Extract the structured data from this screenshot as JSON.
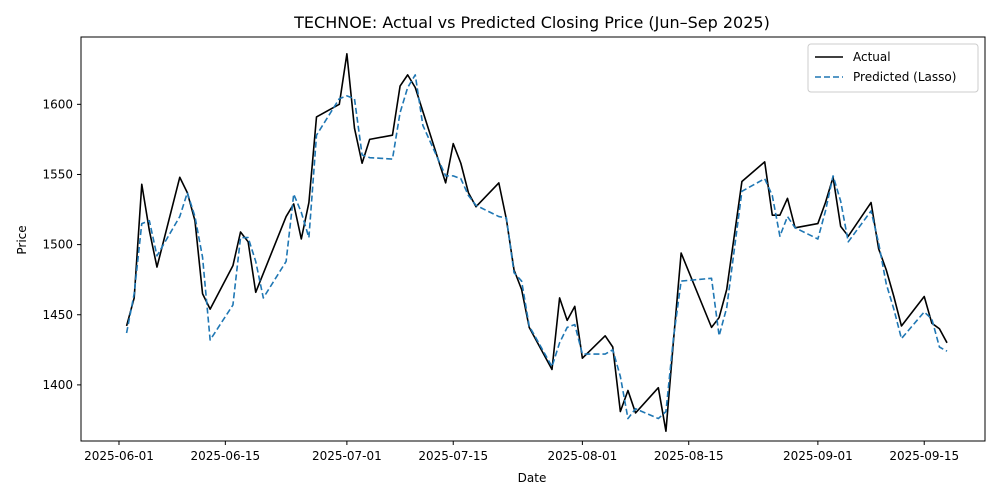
{
  "chart_data": {
    "type": "line",
    "title": "TECHNOE: Actual vs Predicted Closing Price (Jun–Sep 2025)",
    "xlabel": "Date",
    "ylabel": "Price",
    "x_ticks": [
      "2025-06-01",
      "2025-06-15",
      "2025-07-01",
      "2025-07-15",
      "2025-08-01",
      "2025-08-15",
      "2025-09-01",
      "2025-09-15"
    ],
    "y_ticks": [
      1400,
      1450,
      1500,
      1550,
      1600
    ],
    "xlim": [
      "2025-05-27",
      "2025-09-23"
    ],
    "ylim": [
      1360,
      1648
    ],
    "grid": false,
    "legend_position": "top-right",
    "series": [
      {
        "name": "Actual",
        "color": "#000000",
        "style": "solid",
        "points": [
          [
            "2025-06-02",
            1442
          ],
          [
            "2025-06-03",
            1462
          ],
          [
            "2025-06-04",
            1543
          ],
          [
            "2025-06-05",
            1510
          ],
          [
            "2025-06-06",
            1484
          ],
          [
            "2025-06-09",
            1548
          ],
          [
            "2025-06-10",
            1537
          ],
          [
            "2025-06-11",
            1517
          ],
          [
            "2025-06-12",
            1465
          ],
          [
            "2025-06-13",
            1454
          ],
          [
            "2025-06-16",
            1485
          ],
          [
            "2025-06-17",
            1509
          ],
          [
            "2025-06-18",
            1502
          ],
          [
            "2025-06-19",
            1466
          ],
          [
            "2025-06-23",
            1520
          ],
          [
            "2025-06-24",
            1529
          ],
          [
            "2025-06-25",
            1504
          ],
          [
            "2025-06-26",
            1530
          ],
          [
            "2025-06-27",
            1591
          ],
          [
            "2025-06-30",
            1600
          ],
          [
            "2025-07-01",
            1636
          ],
          [
            "2025-07-02",
            1583
          ],
          [
            "2025-07-03",
            1558
          ],
          [
            "2025-07-04",
            1575
          ],
          [
            "2025-07-07",
            1578
          ],
          [
            "2025-07-08",
            1613
          ],
          [
            "2025-07-09",
            1621
          ],
          [
            "2025-07-10",
            1612
          ],
          [
            "2025-07-11",
            1595
          ],
          [
            "2025-07-14",
            1544
          ],
          [
            "2025-07-15",
            1572
          ],
          [
            "2025-07-16",
            1558
          ],
          [
            "2025-07-17",
            1537
          ],
          [
            "2025-07-18",
            1527
          ],
          [
            "2025-07-21",
            1544
          ],
          [
            "2025-07-22",
            1518
          ],
          [
            "2025-07-23",
            1482
          ],
          [
            "2025-07-24",
            1468
          ],
          [
            "2025-07-25",
            1441
          ],
          [
            "2025-07-28",
            1411
          ],
          [
            "2025-07-29",
            1462
          ],
          [
            "2025-07-30",
            1446
          ],
          [
            "2025-07-31",
            1456
          ],
          [
            "2025-08-01",
            1419
          ],
          [
            "2025-08-04",
            1435
          ],
          [
            "2025-08-05",
            1427
          ],
          [
            "2025-08-06",
            1381
          ],
          [
            "2025-08-07",
            1396
          ],
          [
            "2025-08-08",
            1380
          ],
          [
            "2025-08-11",
            1398
          ],
          [
            "2025-08-12",
            1367
          ],
          [
            "2025-08-13",
            1432
          ],
          [
            "2025-08-14",
            1494
          ],
          [
            "2025-08-18",
            1441
          ],
          [
            "2025-08-19",
            1448
          ],
          [
            "2025-08-20",
            1468
          ],
          [
            "2025-08-22",
            1545
          ],
          [
            "2025-08-25",
            1559
          ],
          [
            "2025-08-26",
            1521
          ],
          [
            "2025-08-27",
            1521
          ],
          [
            "2025-08-28",
            1533
          ],
          [
            "2025-08-29",
            1512
          ],
          [
            "2025-09-01",
            1515
          ],
          [
            "2025-09-02",
            1530
          ],
          [
            "2025-09-03",
            1548
          ],
          [
            "2025-09-04",
            1513
          ],
          [
            "2025-09-05",
            1506
          ],
          [
            "2025-09-08",
            1530
          ],
          [
            "2025-09-09",
            1497
          ],
          [
            "2025-09-10",
            1482
          ],
          [
            "2025-09-11",
            1463
          ],
          [
            "2025-09-12",
            1442
          ],
          [
            "2025-09-15",
            1463
          ],
          [
            "2025-09-16",
            1444
          ],
          [
            "2025-09-17",
            1440
          ],
          [
            "2025-09-18",
            1430
          ]
        ]
      },
      {
        "name": "Predicted (Lasso)",
        "color": "#1f77b4",
        "style": "dashed",
        "points": [
          [
            "2025-06-02",
            1437
          ],
          [
            "2025-06-03",
            1465
          ],
          [
            "2025-06-04",
            1515
          ],
          [
            "2025-06-05",
            1517
          ],
          [
            "2025-06-06",
            1492
          ],
          [
            "2025-06-09",
            1520
          ],
          [
            "2025-06-10",
            1537
          ],
          [
            "2025-06-11",
            1520
          ],
          [
            "2025-06-12",
            1491
          ],
          [
            "2025-06-13",
            1432
          ],
          [
            "2025-06-16",
            1457
          ],
          [
            "2025-06-17",
            1505
          ],
          [
            "2025-06-18",
            1505
          ],
          [
            "2025-06-19",
            1488
          ],
          [
            "2025-06-20",
            1462
          ],
          [
            "2025-06-23",
            1488
          ],
          [
            "2025-06-24",
            1536
          ],
          [
            "2025-06-25",
            1523
          ],
          [
            "2025-06-26",
            1505
          ],
          [
            "2025-06-27",
            1578
          ],
          [
            "2025-06-30",
            1604
          ],
          [
            "2025-07-01",
            1606
          ],
          [
            "2025-07-02",
            1604
          ],
          [
            "2025-07-03",
            1564
          ],
          [
            "2025-07-04",
            1562
          ],
          [
            "2025-07-07",
            1561
          ],
          [
            "2025-07-08",
            1594
          ],
          [
            "2025-07-09",
            1612
          ],
          [
            "2025-07-10",
            1621
          ],
          [
            "2025-07-11",
            1585
          ],
          [
            "2025-07-14",
            1549
          ],
          [
            "2025-07-15",
            1549
          ],
          [
            "2025-07-16",
            1547
          ],
          [
            "2025-07-17",
            1535
          ],
          [
            "2025-07-18",
            1528
          ],
          [
            "2025-07-21",
            1520
          ],
          [
            "2025-07-22",
            1519
          ],
          [
            "2025-07-23",
            1480
          ],
          [
            "2025-07-24",
            1474
          ],
          [
            "2025-07-25",
            1442
          ],
          [
            "2025-07-28",
            1413
          ],
          [
            "2025-07-29",
            1430
          ],
          [
            "2025-07-30",
            1441
          ],
          [
            "2025-07-31",
            1443
          ],
          [
            "2025-08-01",
            1422
          ],
          [
            "2025-08-04",
            1422
          ],
          [
            "2025-08-05",
            1425
          ],
          [
            "2025-08-06",
            1406
          ],
          [
            "2025-08-07",
            1376
          ],
          [
            "2025-08-08",
            1383
          ],
          [
            "2025-08-11",
            1376
          ],
          [
            "2025-08-12",
            1381
          ],
          [
            "2025-08-13",
            1434
          ],
          [
            "2025-08-14",
            1474
          ],
          [
            "2025-08-18",
            1476
          ],
          [
            "2025-08-19",
            1435
          ],
          [
            "2025-08-20",
            1455
          ],
          [
            "2025-08-22",
            1538
          ],
          [
            "2025-08-25",
            1547
          ],
          [
            "2025-08-26",
            1535
          ],
          [
            "2025-08-27",
            1506
          ],
          [
            "2025-08-28",
            1520
          ],
          [
            "2025-08-29",
            1512
          ],
          [
            "2025-09-01",
            1504
          ],
          [
            "2025-09-02",
            1524
          ],
          [
            "2025-09-03",
            1549
          ],
          [
            "2025-09-04",
            1531
          ],
          [
            "2025-09-05",
            1502
          ],
          [
            "2025-09-08",
            1524
          ],
          [
            "2025-09-09",
            1501
          ],
          [
            "2025-09-10",
            1472
          ],
          [
            "2025-09-11",
            1454
          ],
          [
            "2025-09-12",
            1433
          ],
          [
            "2025-09-15",
            1452
          ],
          [
            "2025-09-16",
            1447
          ],
          [
            "2025-09-17",
            1427
          ],
          [
            "2025-09-18",
            1424
          ]
        ]
      }
    ]
  }
}
